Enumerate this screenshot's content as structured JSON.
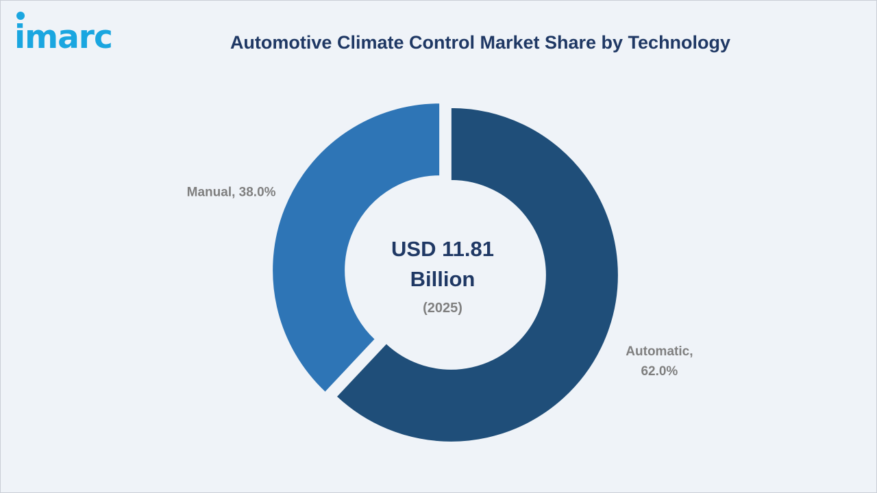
{
  "brand": {
    "logo_text": "imarc",
    "logo_color": "#1aa6e0"
  },
  "chart_data": {
    "type": "pie",
    "variant": "donut",
    "title": "Automotive Climate Control Market Share by Technology",
    "categories": [
      "Automatic",
      "Manual"
    ],
    "values": [
      62.0,
      38.0
    ],
    "unit": "%",
    "labels": [
      {
        "lines": [
          "Automatic,",
          "62.0%"
        ]
      },
      {
        "lines": [
          "Manual, 38.0%"
        ]
      }
    ],
    "colors": [
      "#1f4e79",
      "#2e75b6"
    ],
    "center_text": {
      "value_lines": [
        "USD 11.81",
        "Billion"
      ],
      "year": "(2025)"
    },
    "label_color": "#7f7f7f",
    "center_color": "#1f3864",
    "legend": "none"
  }
}
